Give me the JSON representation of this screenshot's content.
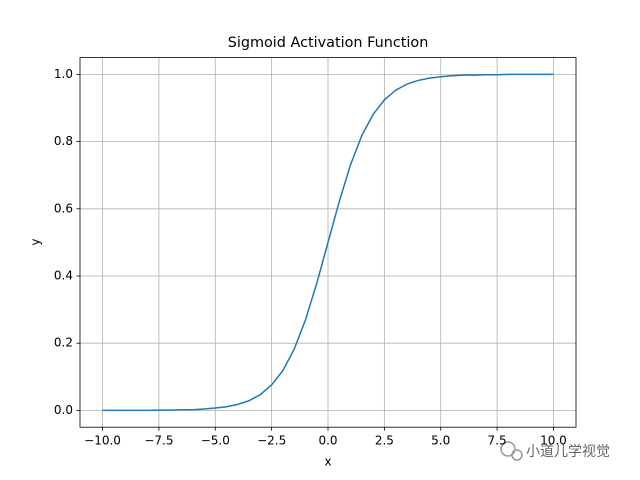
{
  "chart_data": {
    "type": "line",
    "title": "Sigmoid Activation Function",
    "x_label": "x",
    "y_label": "y",
    "x": [
      -10,
      -9.5,
      -9,
      -8.5,
      -8,
      -7.5,
      -7,
      -6.5,
      -6,
      -5.5,
      -5,
      -4.5,
      -4,
      -3.5,
      -3,
      -2.5,
      -2,
      -1.5,
      -1,
      -0.5,
      0,
      0.5,
      1,
      1.5,
      2,
      2.5,
      3,
      3.5,
      4,
      4.5,
      5,
      5.5,
      6,
      6.5,
      7,
      7.5,
      8,
      8.5,
      9,
      9.5,
      10
    ],
    "series": [
      {
        "color": "#1f77b4",
        "values": [
          0.0,
          0.0,
          0.0,
          0.0,
          0.0,
          0.001,
          0.001,
          0.002,
          0.002,
          0.004,
          0.007,
          0.011,
          0.018,
          0.029,
          0.047,
          0.076,
          0.119,
          0.182,
          0.269,
          0.378,
          0.5,
          0.622,
          0.731,
          0.818,
          0.881,
          0.924,
          0.953,
          0.971,
          0.982,
          0.989,
          0.993,
          0.996,
          0.998,
          0.998,
          0.999,
          0.999,
          1.0,
          1.0,
          1.0,
          1.0,
          1.0
        ]
      }
    ],
    "xlim": [
      -11,
      11
    ],
    "ylim": [
      -0.05,
      1.05
    ],
    "xticks": [
      {
        "value": -10,
        "label": "−10.0"
      },
      {
        "value": -7.5,
        "label": "−7.5"
      },
      {
        "value": -5,
        "label": "−5.0"
      },
      {
        "value": -2.5,
        "label": "−2.5"
      },
      {
        "value": 0,
        "label": "0.0"
      },
      {
        "value": 2.5,
        "label": "2.5"
      },
      {
        "value": 5,
        "label": "5.0"
      },
      {
        "value": 7.5,
        "label": "7.5"
      },
      {
        "value": 10,
        "label": "10.0"
      }
    ],
    "yticks": [
      {
        "value": 0,
        "label": "0.0"
      },
      0.2,
      0.4,
      0.6,
      0.8,
      {
        "value": 1,
        "label": "1.0"
      }
    ],
    "grid": true
  },
  "watermark": "小道儿学视觉"
}
